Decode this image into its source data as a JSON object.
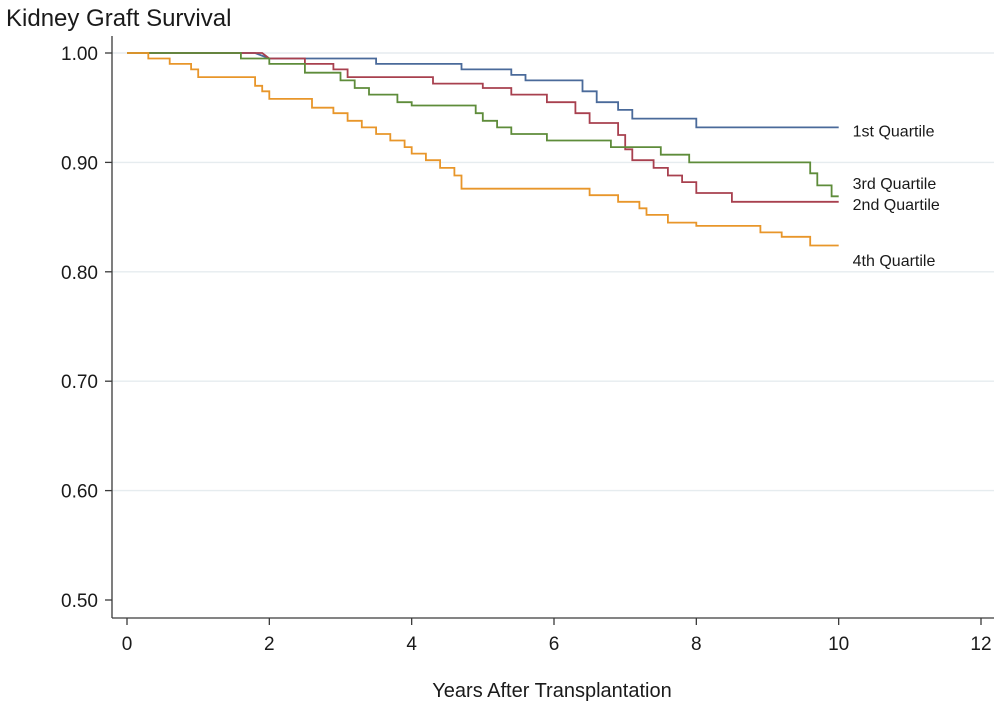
{
  "chart_data": {
    "type": "line",
    "title": "Kidney Graft Survival",
    "xlabel": "Years After Transplantation",
    "ylabel": "",
    "xlim": [
      0,
      12
    ],
    "ylim": [
      0.5,
      1.0
    ],
    "xticks": [
      0,
      2,
      4,
      6,
      8,
      10,
      12
    ],
    "xtick_labels": [
      "0",
      "2",
      "4",
      "6",
      "8",
      "10",
      "12"
    ],
    "yticks": [
      0.5,
      0.6,
      0.7,
      0.8,
      0.9,
      1.0
    ],
    "ytick_labels": [
      "0.50",
      "0.60",
      "0.70",
      "0.80",
      "0.90",
      "1.00"
    ],
    "grid": true,
    "step": true,
    "series": [
      {
        "name": "1st Quartile",
        "label": "1st Quartile",
        "color": "#4a6a9a",
        "label_y": 0.929,
        "points": [
          [
            0,
            1.0
          ],
          [
            1.8,
            1.0
          ],
          [
            2.0,
            0.995
          ],
          [
            3.5,
            0.995
          ],
          [
            3.5,
            0.99
          ],
          [
            4.7,
            0.99
          ],
          [
            4.7,
            0.985
          ],
          [
            5.4,
            0.985
          ],
          [
            5.4,
            0.98
          ],
          [
            5.6,
            0.98
          ],
          [
            5.6,
            0.975
          ],
          [
            6.4,
            0.975
          ],
          [
            6.4,
            0.965
          ],
          [
            6.6,
            0.965
          ],
          [
            6.6,
            0.955
          ],
          [
            6.9,
            0.955
          ],
          [
            6.9,
            0.948
          ],
          [
            7.1,
            0.948
          ],
          [
            7.1,
            0.94
          ],
          [
            8.0,
            0.94
          ],
          [
            8.0,
            0.932
          ],
          [
            10.0,
            0.932
          ]
        ]
      },
      {
        "name": "2nd Quartile",
        "label": "2nd Quartile",
        "color": "#a8404f",
        "label_y": 0.862,
        "points": [
          [
            0,
            1.0
          ],
          [
            1.9,
            1.0
          ],
          [
            2.0,
            0.995
          ],
          [
            2.5,
            0.995
          ],
          [
            2.5,
            0.99
          ],
          [
            2.9,
            0.99
          ],
          [
            2.9,
            0.985
          ],
          [
            3.1,
            0.985
          ],
          [
            3.1,
            0.978
          ],
          [
            4.3,
            0.978
          ],
          [
            4.3,
            0.972
          ],
          [
            5.0,
            0.972
          ],
          [
            5.0,
            0.968
          ],
          [
            5.4,
            0.968
          ],
          [
            5.4,
            0.962
          ],
          [
            5.9,
            0.962
          ],
          [
            5.9,
            0.955
          ],
          [
            6.3,
            0.955
          ],
          [
            6.3,
            0.945
          ],
          [
            6.5,
            0.945
          ],
          [
            6.5,
            0.936
          ],
          [
            6.9,
            0.936
          ],
          [
            6.9,
            0.925
          ],
          [
            7.0,
            0.925
          ],
          [
            7.0,
            0.912
          ],
          [
            7.1,
            0.912
          ],
          [
            7.1,
            0.902
          ],
          [
            7.4,
            0.902
          ],
          [
            7.4,
            0.895
          ],
          [
            7.6,
            0.895
          ],
          [
            7.6,
            0.888
          ],
          [
            7.8,
            0.888
          ],
          [
            7.8,
            0.882
          ],
          [
            8.0,
            0.882
          ],
          [
            8.0,
            0.872
          ],
          [
            8.5,
            0.872
          ],
          [
            8.5,
            0.864
          ],
          [
            10.0,
            0.864
          ]
        ]
      },
      {
        "name": "3rd Quartile",
        "label": "3rd Quartile",
        "color": "#5e8c3a",
        "label_y": 0.881,
        "points": [
          [
            0,
            1.0
          ],
          [
            1.6,
            1.0
          ],
          [
            1.6,
            0.995
          ],
          [
            2.0,
            0.995
          ],
          [
            2.0,
            0.99
          ],
          [
            2.5,
            0.99
          ],
          [
            2.5,
            0.982
          ],
          [
            3.0,
            0.982
          ],
          [
            3.0,
            0.975
          ],
          [
            3.2,
            0.975
          ],
          [
            3.2,
            0.968
          ],
          [
            3.4,
            0.968
          ],
          [
            3.4,
            0.962
          ],
          [
            3.8,
            0.962
          ],
          [
            3.8,
            0.955
          ],
          [
            4.0,
            0.955
          ],
          [
            4.0,
            0.952
          ],
          [
            4.9,
            0.952
          ],
          [
            4.9,
            0.945
          ],
          [
            5.0,
            0.945
          ],
          [
            5.0,
            0.938
          ],
          [
            5.2,
            0.938
          ],
          [
            5.2,
            0.932
          ],
          [
            5.4,
            0.932
          ],
          [
            5.4,
            0.926
          ],
          [
            5.9,
            0.926
          ],
          [
            5.9,
            0.92
          ],
          [
            6.8,
            0.92
          ],
          [
            6.8,
            0.914
          ],
          [
            7.5,
            0.914
          ],
          [
            7.5,
            0.907
          ],
          [
            7.9,
            0.907
          ],
          [
            7.9,
            0.9
          ],
          [
            9.6,
            0.9
          ],
          [
            9.6,
            0.89
          ],
          [
            9.7,
            0.89
          ],
          [
            9.7,
            0.879
          ],
          [
            9.9,
            0.879
          ],
          [
            9.9,
            0.869
          ],
          [
            10.0,
            0.869
          ]
        ]
      },
      {
        "name": "4th Quartile",
        "label": "4th Quartile",
        "color": "#e8962a",
        "label_y": 0.811,
        "points": [
          [
            0,
            1.0
          ],
          [
            0.3,
            1.0
          ],
          [
            0.3,
            0.995
          ],
          [
            0.6,
            0.995
          ],
          [
            0.6,
            0.99
          ],
          [
            0.9,
            0.99
          ],
          [
            0.9,
            0.985
          ],
          [
            1.0,
            0.985
          ],
          [
            1.0,
            0.978
          ],
          [
            1.8,
            0.978
          ],
          [
            1.8,
            0.97
          ],
          [
            1.9,
            0.97
          ],
          [
            1.9,
            0.965
          ],
          [
            2.0,
            0.965
          ],
          [
            2.0,
            0.958
          ],
          [
            2.6,
            0.958
          ],
          [
            2.6,
            0.95
          ],
          [
            2.9,
            0.95
          ],
          [
            2.9,
            0.945
          ],
          [
            3.1,
            0.945
          ],
          [
            3.1,
            0.938
          ],
          [
            3.3,
            0.938
          ],
          [
            3.3,
            0.932
          ],
          [
            3.5,
            0.932
          ],
          [
            3.5,
            0.926
          ],
          [
            3.7,
            0.926
          ],
          [
            3.7,
            0.92
          ],
          [
            3.9,
            0.92
          ],
          [
            3.9,
            0.914
          ],
          [
            4.0,
            0.914
          ],
          [
            4.0,
            0.908
          ],
          [
            4.2,
            0.908
          ],
          [
            4.2,
            0.902
          ],
          [
            4.4,
            0.902
          ],
          [
            4.4,
            0.895
          ],
          [
            4.6,
            0.895
          ],
          [
            4.6,
            0.888
          ],
          [
            4.7,
            0.888
          ],
          [
            4.7,
            0.876
          ],
          [
            6.5,
            0.876
          ],
          [
            6.5,
            0.87
          ],
          [
            6.9,
            0.87
          ],
          [
            6.9,
            0.864
          ],
          [
            7.2,
            0.864
          ],
          [
            7.2,
            0.858
          ],
          [
            7.3,
            0.858
          ],
          [
            7.3,
            0.852
          ],
          [
            7.6,
            0.852
          ],
          [
            7.6,
            0.845
          ],
          [
            8.0,
            0.845
          ],
          [
            8.0,
            0.842
          ],
          [
            8.9,
            0.842
          ],
          [
            8.9,
            0.836
          ],
          [
            9.2,
            0.836
          ],
          [
            9.2,
            0.832
          ],
          [
            9.6,
            0.832
          ],
          [
            9.6,
            0.824
          ],
          [
            10.0,
            0.824
          ]
        ]
      }
    ]
  }
}
